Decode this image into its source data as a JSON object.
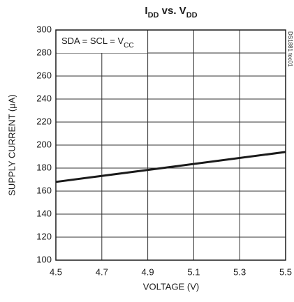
{
  "chart_data": {
    "type": "line",
    "title": [
      "I",
      "DD",
      " vs. V",
      "DD"
    ],
    "annotation": [
      "SDA = SCL = V",
      "CC"
    ],
    "side_note": "DS1881 toc01",
    "x_label": "VOLTAGE (V)",
    "y_label": "SUPPLY CURRENT (μA)",
    "x": [
      4.5,
      5.0,
      5.5
    ],
    "series": [
      {
        "color": "#1a1a1a",
        "values": [
          168,
          181,
          194
        ]
      }
    ],
    "xlim": [
      4.5,
      5.5
    ],
    "xticks": [
      4.5,
      4.7,
      4.9,
      5.1,
      5.3,
      5.5
    ],
    "ylim": [
      100,
      300
    ],
    "yticks": [
      100,
      120,
      140,
      160,
      180,
      200,
      220,
      240,
      260,
      280,
      300
    ],
    "grid": true
  }
}
